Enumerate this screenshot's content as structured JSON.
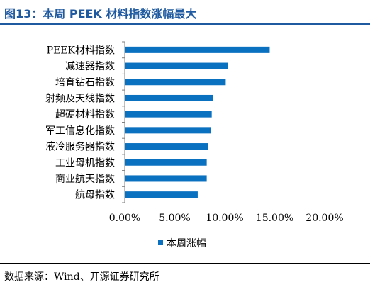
{
  "figure": {
    "title": "图13：本周 PEEK 材料指数涨幅最大",
    "source": "数据来源：Wind、开源证券研究所"
  },
  "colors": {
    "bar": "#0a70c0",
    "title": "#1f5aa0"
  },
  "chart_data": {
    "type": "bar",
    "orientation": "horizontal",
    "categories": [
      "PEEK材料指数",
      "减速器指数",
      "培育钻石指数",
      "射频及天线指数",
      "超硬材料指数",
      "军工信息化指数",
      "液冷服务器指数",
      "工业母机指数",
      "商业航天指数",
      "航母指数"
    ],
    "series": [
      {
        "name": "本周涨幅",
        "values": [
          0.145,
          0.103,
          0.101,
          0.088,
          0.087,
          0.086,
          0.083,
          0.082,
          0.082,
          0.073
        ]
      }
    ],
    "xlim": [
      0,
      0.2
    ],
    "xticks": [
      0,
      0.05,
      0.1,
      0.15,
      0.2
    ],
    "xtick_labels": [
      "0.00%",
      "5.00%",
      "10.00%",
      "15.00%",
      "20.00%"
    ],
    "grid": false,
    "legend": "bottom"
  }
}
